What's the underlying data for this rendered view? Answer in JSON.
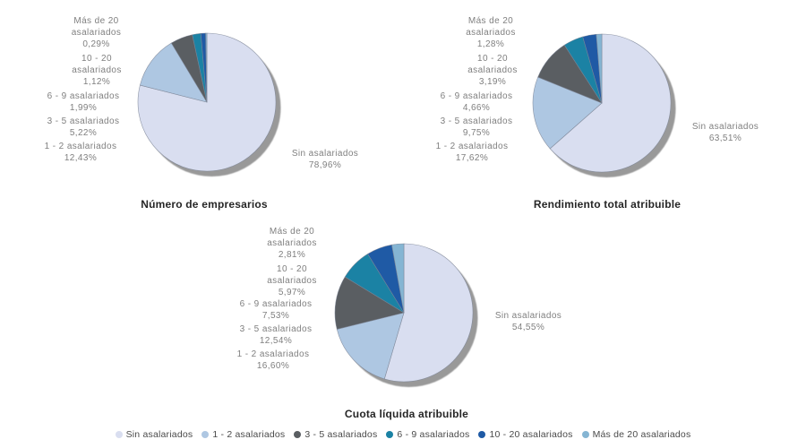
{
  "categories": [
    {
      "name": "Sin asalariados",
      "color": "#d9def0"
    },
    {
      "name": "1 - 2 asalariados",
      "color": "#aec7e2"
    },
    {
      "name": "3 - 5 asalariados",
      "color": "#5a5e62"
    },
    {
      "name": "6 - 9 asalariados",
      "color": "#1b82a4"
    },
    {
      "name": "10 - 20 asalariados",
      "color": "#1f5aa5"
    },
    {
      "name": "Más de 20 asalariados",
      "color": "#85b5d3"
    }
  ],
  "shadow_color": "#999999",
  "slice_stroke": "#7e8697",
  "chart_data": [
    {
      "type": "pie",
      "title": "Número de empresarios",
      "categories": [
        "Sin asalariados",
        "1 - 2 asalariados",
        "3 - 5 asalariados",
        "6 - 9 asalariados",
        "10 - 20 asalariados",
        "Más de 20 asalariados"
      ],
      "values": [
        78.96,
        12.43,
        5.22,
        1.99,
        1.12,
        0.29
      ],
      "left_labels": [
        {
          "name": "Más de 20\nasalariados",
          "pct": "0,29%"
        },
        {
          "name": "10 - 20\nasalariados",
          "pct": "1,12%"
        },
        {
          "name": "6 - 9 asalariados",
          "pct": "1,99%"
        },
        {
          "name": "3 - 5 asalariados",
          "pct": "5,22%"
        },
        {
          "name": "1 - 2 asalariados",
          "pct": "12,43%"
        }
      ],
      "right_label": {
        "name": "Sin asalariados",
        "pct": "78,96%"
      }
    },
    {
      "type": "pie",
      "title": "Rendimiento total atribuible",
      "categories": [
        "Sin asalariados",
        "1 - 2 asalariados",
        "3 - 5 asalariados",
        "6 - 9 asalariados",
        "10 - 20 asalariados",
        "Más de 20 asalariados"
      ],
      "values": [
        63.51,
        17.62,
        9.75,
        4.66,
        3.19,
        1.28
      ],
      "left_labels": [
        {
          "name": "Más de 20\nasalariados",
          "pct": "1,28%"
        },
        {
          "name": "10 - 20\nasalariados",
          "pct": "3,19%"
        },
        {
          "name": "6 - 9 asalariados",
          "pct": "4,66%"
        },
        {
          "name": "3 - 5 asalariados",
          "pct": "9,75%"
        },
        {
          "name": "1 - 2 asalariados",
          "pct": "17,62%"
        }
      ],
      "right_label": {
        "name": "Sin asalariados",
        "pct": "63,51%"
      }
    },
    {
      "type": "pie",
      "title": "Cuota líquida atribuible",
      "categories": [
        "Sin asalariados",
        "1 - 2 asalariados",
        "3 - 5 asalariados",
        "6 - 9 asalariados",
        "10 - 20 asalariados",
        "Más de 20 asalariados"
      ],
      "values": [
        54.55,
        16.6,
        12.54,
        7.53,
        5.97,
        2.81
      ],
      "left_labels": [
        {
          "name": "Más de 20\nasalariados",
          "pct": "2,81%"
        },
        {
          "name": "10 - 20\nasalariados",
          "pct": "5,97%"
        },
        {
          "name": "6 - 9 asalariados",
          "pct": "7,53%"
        },
        {
          "name": "3 - 5 asalariados",
          "pct": "12,54%"
        },
        {
          "name": "1 - 2 asalariados",
          "pct": "16,60%"
        }
      ],
      "right_label": {
        "name": "Sin asalariados",
        "pct": "54,55%"
      }
    }
  ],
  "legend": {
    "items": [
      "Sin asalariados",
      "1 - 2 asalariados",
      "3 - 5 asalariados",
      "6 - 9 asalariados",
      "10 - 20 asalariados",
      "Más de 20 asalariados"
    ]
  }
}
